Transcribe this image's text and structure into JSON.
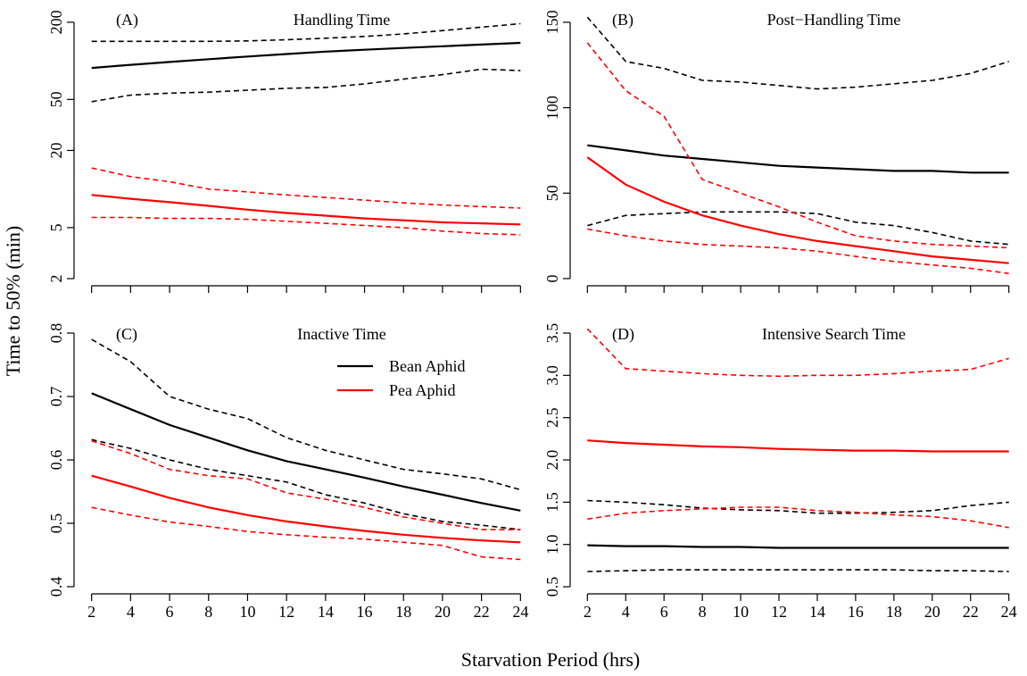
{
  "axis_labels": {
    "y": "Time to 50% (min)",
    "x": "Starvation Period (hrs)"
  },
  "chart_data": [
    {
      "type": "line",
      "label": "(A)",
      "title": "Handling Time",
      "log_y": true,
      "xtick_labels": false,
      "x": [
        2,
        4,
        6,
        8,
        10,
        12,
        14,
        16,
        18,
        20,
        22,
        24
      ],
      "xlim": [
        1.1,
        24.9
      ],
      "xticks": [
        2,
        4,
        6,
        8,
        10,
        12,
        14,
        16,
        18,
        20,
        22,
        24
      ],
      "ylim": [
        1.76,
        254
      ],
      "yticks": [
        2,
        5,
        20,
        50,
        200
      ],
      "series": [
        {
          "color": "#000000",
          "dash": false,
          "values": [
            88,
            93,
            98,
            103,
            108,
            113,
            118,
            122,
            126,
            130,
            134,
            138
          ]
        },
        {
          "color": "#000000",
          "dash": true,
          "values": [
            142,
            142,
            142,
            142,
            143,
            146,
            150,
            155,
            162,
            172,
            183,
            195
          ]
        },
        {
          "color": "#000000",
          "dash": true,
          "values": [
            48,
            54,
            56,
            57,
            59,
            61,
            62,
            66,
            72,
            78,
            86,
            84
          ]
        },
        {
          "color": "#ff0000",
          "dash": false,
          "values": [
            9.0,
            8.4,
            7.9,
            7.4,
            6.9,
            6.5,
            6.2,
            5.9,
            5.7,
            5.5,
            5.4,
            5.3
          ]
        },
        {
          "color": "#ff0000",
          "dash": true,
          "values": [
            14.6,
            12.5,
            11.4,
            10,
            9.5,
            9,
            8.6,
            8.2,
            7.8,
            7.5,
            7.3,
            7.1
          ]
        },
        {
          "color": "#ff0000",
          "dash": true,
          "values": [
            6.0,
            6.0,
            5.9,
            5.9,
            5.8,
            5.6,
            5.4,
            5.2,
            5.0,
            4.7,
            4.5,
            4.4
          ]
        }
      ]
    },
    {
      "type": "line",
      "label": "(B)",
      "title": "Post−Handling Time",
      "log_y": false,
      "xtick_labels": false,
      "x": [
        2,
        4,
        6,
        8,
        10,
        12,
        14,
        16,
        18,
        20,
        22,
        24
      ],
      "xlim": [
        1.1,
        24.9
      ],
      "xticks": [
        2,
        4,
        6,
        8,
        10,
        12,
        14,
        16,
        18,
        20,
        22,
        24
      ],
      "ylim": [
        -4.2,
        157.8
      ],
      "yticks": [
        0,
        50,
        100,
        150
      ],
      "series": [
        {
          "color": "#000000",
          "dash": false,
          "values": [
            78,
            75,
            72,
            70,
            68,
            66,
            65,
            64,
            63,
            63,
            62,
            62
          ]
        },
        {
          "color": "#000000",
          "dash": true,
          "values": [
            153,
            127,
            123,
            116,
            115,
            113,
            111,
            112,
            114,
            116,
            120,
            127
          ]
        },
        {
          "color": "#000000",
          "dash": true,
          "values": [
            31,
            37,
            38,
            39,
            39,
            39,
            38,
            33,
            31,
            27,
            22,
            20
          ]
        },
        {
          "color": "#ff0000",
          "dash": false,
          "values": [
            71,
            55,
            45,
            37,
            31,
            26,
            22,
            19,
            16,
            13,
            11,
            9
          ]
        },
        {
          "color": "#ff0000",
          "dash": true,
          "values": [
            138,
            110,
            95,
            58,
            50,
            42,
            33,
            25,
            22,
            20,
            19,
            18
          ]
        },
        {
          "color": "#ff0000",
          "dash": true,
          "values": [
            29,
            25,
            22,
            20,
            19,
            18,
            16,
            13,
            10,
            8,
            6,
            3
          ]
        }
      ]
    },
    {
      "type": "line",
      "label": "(C)",
      "title": "Inactive Time",
      "log_y": false,
      "xtick_labels": true,
      "x": [
        2,
        4,
        6,
        8,
        10,
        12,
        14,
        16,
        18,
        20,
        22,
        24
      ],
      "xlim": [
        1.1,
        24.9
      ],
      "xticks": [
        2,
        4,
        6,
        8,
        10,
        12,
        14,
        16,
        18,
        20,
        22,
        24
      ],
      "ylim": [
        0.3887,
        0.8155
      ],
      "yticks": [
        0.4,
        0.5,
        0.6,
        0.7,
        0.8
      ],
      "legend": [
        {
          "name": "Bean Aphid",
          "color": "#000000"
        },
        {
          "name": "Pea Aphid",
          "color": "#ff0000"
        }
      ],
      "legend_position": "top-right",
      "series": [
        {
          "color": "#000000",
          "dash": false,
          "values": [
            0.705,
            0.68,
            0.655,
            0.635,
            0.615,
            0.598,
            0.585,
            0.572,
            0.558,
            0.545,
            0.532,
            0.52
          ]
        },
        {
          "color": "#000000",
          "dash": true,
          "values": [
            0.79,
            0.755,
            0.7,
            0.68,
            0.665,
            0.635,
            0.615,
            0.6,
            0.585,
            0.578,
            0.57,
            0.553
          ]
        },
        {
          "color": "#000000",
          "dash": true,
          "values": [
            0.632,
            0.618,
            0.6,
            0.585,
            0.575,
            0.565,
            0.545,
            0.532,
            0.515,
            0.503,
            0.497,
            0.49
          ]
        },
        {
          "color": "#ff0000",
          "dash": false,
          "values": [
            0.575,
            0.558,
            0.54,
            0.525,
            0.513,
            0.503,
            0.495,
            0.488,
            0.482,
            0.477,
            0.473,
            0.47
          ]
        },
        {
          "color": "#ff0000",
          "dash": true,
          "values": [
            0.63,
            0.61,
            0.585,
            0.575,
            0.57,
            0.548,
            0.538,
            0.525,
            0.51,
            0.5,
            0.49,
            0.49
          ]
        },
        {
          "color": "#ff0000",
          "dash": true,
          "values": [
            0.525,
            0.513,
            0.502,
            0.495,
            0.487,
            0.482,
            0.478,
            0.475,
            0.47,
            0.465,
            0.447,
            0.443
          ]
        }
      ]
    },
    {
      "type": "line",
      "label": "(D)",
      "title": "Intensive Search Time",
      "log_y": false,
      "xtick_labels": true,
      "x": [
        2,
        4,
        6,
        8,
        10,
        12,
        14,
        16,
        18,
        20,
        22,
        24
      ],
      "xlim": [
        1.1,
        24.9
      ],
      "xticks": [
        2,
        4,
        6,
        8,
        10,
        12,
        14,
        16,
        18,
        20,
        22,
        24
      ],
      "ylim": [
        0.416,
        3.616
      ],
      "yticks": [
        0.5,
        {
          "value": 1,
          "label": "1.0"
        },
        1.5,
        {
          "value": 2,
          "label": "2.0"
        },
        2.5,
        {
          "value": 3,
          "label": "3.0"
        },
        3.5
      ],
      "series": [
        {
          "color": "#000000",
          "dash": false,
          "values": [
            0.99,
            0.98,
            0.98,
            0.97,
            0.97,
            0.96,
            0.96,
            0.96,
            0.96,
            0.96,
            0.96,
            0.96
          ]
        },
        {
          "color": "#000000",
          "dash": true,
          "values": [
            1.52,
            1.5,
            1.47,
            1.43,
            1.41,
            1.4,
            1.37,
            1.37,
            1.38,
            1.4,
            1.46,
            1.5
          ]
        },
        {
          "color": "#000000",
          "dash": true,
          "values": [
            0.68,
            0.69,
            0.7,
            0.7,
            0.7,
            0.7,
            0.7,
            0.7,
            0.7,
            0.69,
            0.69,
            0.68
          ]
        },
        {
          "color": "#ff0000",
          "dash": false,
          "values": [
            2.23,
            2.2,
            2.18,
            2.16,
            2.15,
            2.13,
            2.12,
            2.11,
            2.11,
            2.1,
            2.1,
            2.1
          ]
        },
        {
          "color": "#ff0000",
          "dash": true,
          "values": [
            3.55,
            3.08,
            3.05,
            3.02,
            3.0,
            2.99,
            3.0,
            3.0,
            3.02,
            3.05,
            3.07,
            3.2
          ]
        },
        {
          "color": "#ff0000",
          "dash": true,
          "values": [
            1.3,
            1.37,
            1.4,
            1.42,
            1.44,
            1.44,
            1.4,
            1.38,
            1.35,
            1.33,
            1.28,
            1.2
          ]
        }
      ]
    }
  ]
}
